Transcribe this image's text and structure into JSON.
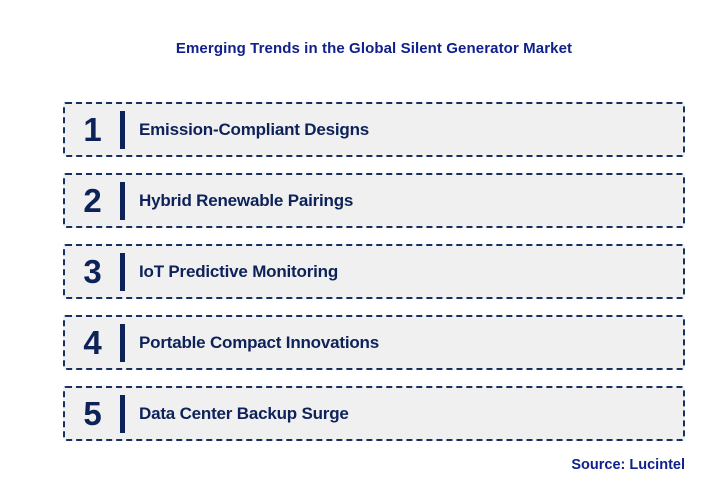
{
  "title": "Emerging Trends in the Global Silent Generator Market",
  "items": [
    {
      "number": "1",
      "label": "Emission-Compliant Designs"
    },
    {
      "number": "2",
      "label": "Hybrid Renewable Pairings"
    },
    {
      "number": "3",
      "label": "IoT Predictive Monitoring"
    },
    {
      "number": "4",
      "label": "Portable Compact Innovations"
    },
    {
      "number": "5",
      "label": "Data Center Backup Surge"
    }
  ],
  "source": "Source: Lucintel",
  "colors": {
    "title_text": "#10208C",
    "item_text": "#0D2259",
    "box_border": "#16305F",
    "box_background": "#F0F0F0",
    "page_background": "#FFFFFF"
  }
}
